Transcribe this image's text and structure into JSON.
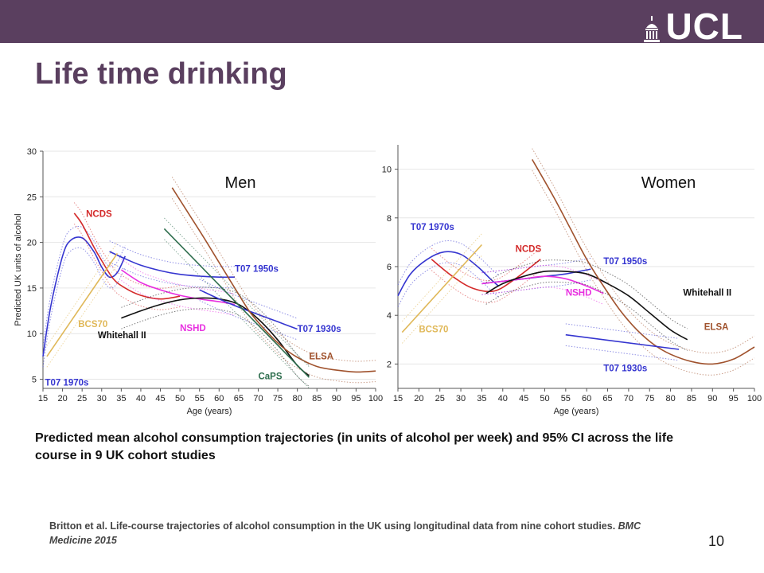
{
  "theme": {
    "header_color": "#5a3f5f",
    "title_color": "#5a3f5f"
  },
  "header": {
    "logo_text": "UCL",
    "logo_icon": "ucl-dome-icon"
  },
  "title": "Life time drinking",
  "caption": "Predicted mean alcohol consumption trajectories (in units of alcohol per week) and 95% CI across the life course in 9 UK cohort studies",
  "reference": {
    "text": "Britton et al. Life-course trajectories of alcohol consumption in the UK using longitudinal data from nine cohort studies.",
    "journal": "BMC Medicine 2015"
  },
  "page_number": "10",
  "chart_data": [
    {
      "type": "line",
      "title": "Men",
      "xlabel": "Age (years)",
      "ylabel": "Predicted UK units of alcohol",
      "xlim": [
        15,
        100
      ],
      "ylim": [
        4,
        30
      ],
      "xticks": [
        15,
        20,
        25,
        30,
        35,
        40,
        45,
        50,
        55,
        60,
        65,
        70,
        75,
        80,
        85,
        90,
        95,
        100
      ],
      "yticks": [
        5,
        10,
        15,
        20,
        25,
        30
      ],
      "grid": "horizontal",
      "series": [
        {
          "name": "T07 1970s",
          "color": "#3535d0",
          "label_at": [
            15.5,
            4.3
          ],
          "x": [
            15,
            17,
            20,
            22,
            25,
            28,
            30,
            32,
            34,
            36
          ],
          "y": [
            7.5,
            13,
            18.5,
            20.2,
            20.5,
            19,
            17.3,
            16.2,
            16.7,
            18.5
          ]
        },
        {
          "name": "T07 1950s",
          "color": "#3535d0",
          "label_at": [
            64,
            16.8
          ],
          "x": [
            32,
            36,
            40,
            45,
            50,
            55,
            60,
            64
          ],
          "y": [
            19,
            18.2,
            17.5,
            16.9,
            16.5,
            16.3,
            16.2,
            16.2
          ]
        },
        {
          "name": "NCDS",
          "color": "#d42a2a",
          "label_at": [
            26,
            22.8
          ],
          "x": [
            23,
            25,
            28,
            30,
            33,
            36,
            40,
            45,
            50
          ],
          "y": [
            23.2,
            22,
            19.5,
            18,
            16,
            15,
            14.2,
            13.8,
            14.1
          ]
        },
        {
          "name": "BCS70",
          "color": "#e0b858",
          "label_at": [
            24,
            10.7
          ],
          "x": [
            16,
            34
          ],
          "y": [
            7.5,
            18.8
          ]
        },
        {
          "name": "NSHD",
          "color": "#e830e0",
          "label_at": [
            50,
            10.3
          ],
          "x": [
            35,
            40,
            45,
            50,
            55,
            60,
            64
          ],
          "y": [
            17,
            15.6,
            14.8,
            14.2,
            13.8,
            13.5,
            13.2
          ]
        },
        {
          "name": "Whitehall II",
          "color": "#111111",
          "label_at": [
            29,
            9.5
          ],
          "x": [
            35,
            40,
            45,
            50,
            55,
            60,
            65,
            70,
            75,
            80,
            83
          ],
          "y": [
            11.7,
            12.5,
            13.2,
            13.7,
            13.9,
            13.8,
            13.2,
            11.6,
            9.3,
            6.5,
            5.4
          ]
        },
        {
          "name": "T07 1930s",
          "color": "#3535d0",
          "label_at": [
            80,
            10.2
          ],
          "x": [
            55,
            60,
            65,
            70,
            75,
            80
          ],
          "y": [
            14.8,
            13.8,
            12.9,
            12.1,
            11.3,
            10.5
          ]
        },
        {
          "name": "ELSA",
          "color": "#a0522d",
          "label_at": [
            83,
            7.2
          ],
          "x": [
            48,
            52,
            56,
            60,
            64,
            68,
            72,
            76,
            80,
            85,
            90,
            95,
            100
          ],
          "y": [
            26,
            23.3,
            20.6,
            17.8,
            15,
            12.3,
            10.3,
            8.6,
            7.4,
            6.4,
            6,
            5.8,
            5.9
          ]
        },
        {
          "name": "CaPS",
          "color": "#2e6e4e",
          "label_at": [
            70,
            5
          ],
          "x": [
            46,
            83
          ],
          "y": [
            21.5,
            5.2
          ]
        }
      ]
    },
    {
      "type": "line",
      "title": "Women",
      "xlabel": "Age (years)",
      "ylabel": "",
      "xlim": [
        15,
        100
      ],
      "ylim": [
        1,
        11
      ],
      "xticks": [
        15,
        20,
        25,
        30,
        35,
        40,
        45,
        50,
        55,
        60,
        65,
        70,
        75,
        80,
        85,
        90,
        95,
        100
      ],
      "yticks": [
        2,
        4,
        6,
        8,
        10
      ],
      "grid": "horizontal",
      "series": [
        {
          "name": "T07 1970s",
          "color": "#3535d0",
          "label_at": [
            18,
            7.5
          ],
          "x": [
            15,
            18,
            22,
            26,
            30,
            34,
            37,
            39
          ],
          "y": [
            4.8,
            5.7,
            6.3,
            6.6,
            6.5,
            6,
            5.5,
            5.2
          ]
        },
        {
          "name": "NCDS",
          "color": "#d42a2a",
          "label_at": [
            43,
            6.6
          ],
          "x": [
            23,
            28,
            33,
            38,
            43,
            49
          ],
          "y": [
            6.3,
            5.6,
            5.1,
            5,
            5.5,
            6.3
          ]
        },
        {
          "name": "BCS70",
          "color": "#e0b858",
          "label_at": [
            20,
            3.3
          ],
          "x": [
            16,
            35
          ],
          "y": [
            3.3,
            6.9
          ]
        },
        {
          "name": "T07 1950s",
          "color": "#3535d0",
          "label_at": [
            64,
            6.1
          ],
          "x": [
            35,
            40,
            45,
            50,
            55,
            61
          ],
          "y": [
            5.3,
            5.4,
            5.5,
            5.6,
            5.7,
            5.9
          ]
        },
        {
          "name": "NSHD",
          "color": "#e830e0",
          "label_at": [
            55,
            4.8
          ],
          "x": [
            35,
            40,
            45,
            50,
            55,
            60,
            64
          ],
          "y": [
            5.3,
            5.4,
            5.5,
            5.6,
            5.5,
            5.2,
            4.9
          ]
        },
        {
          "name": "Whitehall II",
          "color": "#111111",
          "label_at": [
            83,
            4.8
          ],
          "x": [
            36,
            40,
            45,
            50,
            55,
            60,
            65,
            70,
            75,
            80,
            84
          ],
          "y": [
            4.9,
            5.3,
            5.6,
            5.8,
            5.8,
            5.7,
            5.3,
            4.8,
            4.1,
            3.4,
            3
          ]
        },
        {
          "name": "ELSA",
          "color": "#a0522d",
          "label_at": [
            88,
            3.4
          ],
          "x": [
            47,
            52,
            56,
            60,
            64,
            68,
            72,
            76,
            80,
            85,
            90,
            95,
            100
          ],
          "y": [
            10.4,
            8.9,
            7.6,
            6.3,
            5.2,
            4.2,
            3.4,
            2.8,
            2.4,
            2.1,
            2,
            2.2,
            2.7
          ]
        },
        {
          "name": "T07 1930s",
          "color": "#3535d0",
          "label_at": [
            64,
            1.7
          ],
          "x": [
            55,
            82
          ],
          "y": [
            3.2,
            2.6
          ]
        }
      ]
    }
  ]
}
